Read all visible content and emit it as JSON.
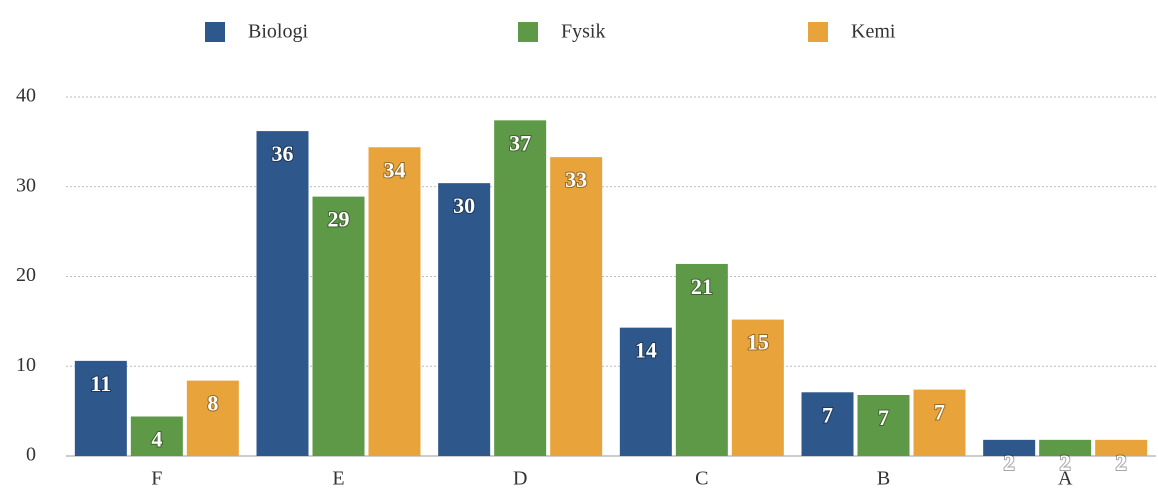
{
  "chart_data": {
    "type": "bar",
    "categories": [
      "F",
      "E",
      "D",
      "C",
      "B",
      "A"
    ],
    "series": [
      {
        "name": "Biologi",
        "color": "#2e578b",
        "values": [
          10.6,
          36.2,
          30.4,
          14.3,
          7.1,
          1.8
        ],
        "value_labels": [
          "11",
          "36",
          "30",
          "14",
          "7",
          "2"
        ]
      },
      {
        "name": "Fysik",
        "color": "#5e9947",
        "values": [
          4.4,
          28.9,
          37.4,
          21.4,
          6.8,
          1.8
        ],
        "value_labels": [
          "4",
          "29",
          "37",
          "21",
          "7",
          "2"
        ]
      },
      {
        "name": "Kemi",
        "color": "#e8a43a",
        "values": [
          8.4,
          34.4,
          33.3,
          15.2,
          7.4,
          1.8
        ],
        "value_labels": [
          "8",
          "34",
          "33",
          "15",
          "7",
          "2"
        ]
      }
    ],
    "ylim": [
      0,
      40
    ],
    "yticks": [
      0,
      10,
      20,
      30,
      40
    ],
    "grid": true,
    "legend": "top"
  }
}
